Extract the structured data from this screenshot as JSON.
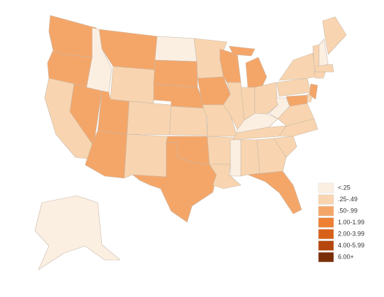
{
  "legend": [
    {
      "label": "<.25",
      "color": "#fbefe2"
    },
    {
      "label": ".25-.49",
      "color": "#f8d5b0"
    },
    {
      "label": ".50-.99",
      "color": "#f4a669"
    },
    {
      "label": "1.00-1.99",
      "color": "#ee7f33"
    },
    {
      "label": "2.00-3.99",
      "color": "#d8611a"
    },
    {
      "label": "4.00-5.99",
      "color": "#b5470e"
    },
    {
      "label": "6.00+",
      "color": "#7a2e08"
    }
  ],
  "state_classes": [
    2,
    2,
    1,
    2,
    0,
    2,
    1,
    2,
    2,
    1,
    1,
    0,
    2,
    2,
    1,
    2,
    2,
    1,
    2,
    1,
    1,
    1,
    2,
    1,
    2,
    1,
    1,
    0,
    1,
    0,
    1,
    1,
    2,
    1,
    1,
    1,
    0,
    1,
    1,
    1,
    0,
    1,
    1,
    2,
    1,
    2,
    1,
    0
  ]
}
